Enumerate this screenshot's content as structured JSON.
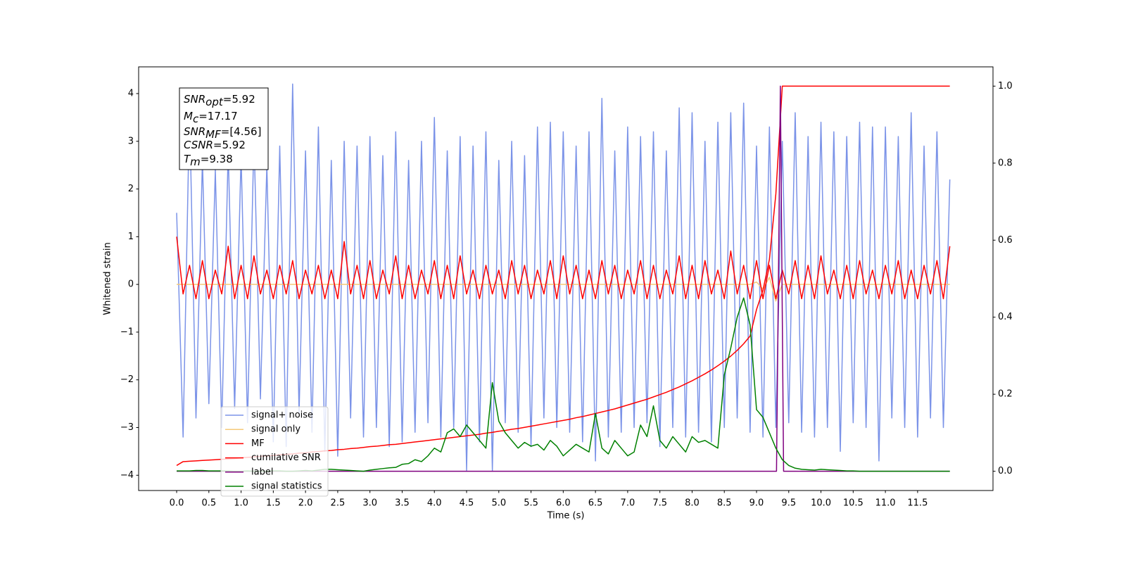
{
  "chart_data": {
    "type": "line",
    "xlabel": "Time (s)",
    "ylabel": "Whitened strain",
    "annotation": [
      {
        "main": "SNR",
        "sub": "opt",
        "rest": "=5.92"
      },
      {
        "main": "M",
        "sub": "c",
        "rest": "=17.17"
      },
      {
        "main": "SNR",
        "sub": "MF",
        "rest": "=[4.56]"
      },
      {
        "main": "CSNR",
        "rest": "=5.92"
      },
      {
        "main": "T",
        "sub": "m",
        "rest": "=9.38"
      }
    ],
    "legend": "lower left",
    "xlim": [
      -0.59,
      12.67
    ],
    "ylim": [
      -4.32,
      4.56
    ],
    "y2lim": [
      -0.05,
      1.05
    ],
    "xticks": [
      {
        "value": 0,
        "label": "0.0"
      },
      0.5,
      {
        "value": 1,
        "label": "1.0"
      },
      1.5,
      {
        "value": 2,
        "label": "2.0"
      },
      2.5,
      {
        "value": 3,
        "label": "3.0"
      },
      3.5,
      {
        "value": 4,
        "label": "4.0"
      },
      4.5,
      {
        "value": 5,
        "label": "5.0"
      },
      5.5,
      {
        "value": 6,
        "label": "6.0"
      },
      6.5,
      {
        "value": 7,
        "label": "7.0"
      },
      7.5,
      {
        "value": 8,
        "label": "8.0"
      },
      8.5,
      {
        "value": 9,
        "label": "9.0"
      },
      9.5,
      {
        "value": 10,
        "label": "10.0"
      },
      10.5,
      {
        "value": 11,
        "label": "11.0"
      },
      11.5
    ],
    "yticks": [
      {
        "value": -4,
        "label": "−4"
      },
      {
        "value": -3,
        "label": "−3"
      },
      {
        "value": -2,
        "label": "−2"
      },
      {
        "value": -1,
        "label": "−1"
      },
      0,
      1,
      2,
      3,
      4
    ],
    "y2ticks": [
      {
        "value": 0,
        "label": "0.0"
      },
      0.2,
      0.4,
      0.6,
      0.8,
      {
        "value": 1,
        "label": "1.0"
      }
    ],
    "x": [
      0,
      0.1,
      0.2,
      0.3,
      0.4,
      0.5,
      0.6,
      0.7,
      0.8,
      0.9,
      1,
      1.1,
      1.2,
      1.3,
      1.4,
      1.5,
      1.6,
      1.7,
      1.8,
      1.9,
      2,
      2.1,
      2.2,
      2.3,
      2.4,
      2.5,
      2.6,
      2.7,
      2.8,
      2.9,
      3,
      3.1,
      3.2,
      3.3,
      3.4,
      3.5,
      3.6,
      3.7,
      3.8,
      3.9,
      4,
      4.1,
      4.2,
      4.3,
      4.4,
      4.5,
      4.6,
      4.7,
      4.8,
      4.9,
      5,
      5.1,
      5.2,
      5.3,
      5.4,
      5.5,
      5.6,
      5.7,
      5.8,
      5.9,
      6,
      6.1,
      6.2,
      6.3,
      6.4,
      6.5,
      6.6,
      6.7,
      6.8,
      6.9,
      7,
      7.1,
      7.2,
      7.3,
      7.4,
      7.5,
      7.6,
      7.7,
      7.8,
      7.9,
      8,
      8.1,
      8.2,
      8.3,
      8.4,
      8.5,
      8.6,
      8.7,
      8.8,
      8.9,
      9,
      9.1,
      9.2,
      9.3,
      9.4,
      9.5,
      9.6,
      9.7,
      9.8,
      9.9,
      10,
      10.1,
      10.2,
      10.3,
      10.4,
      10.5,
      10.6,
      10.7,
      10.8,
      10.9,
      11,
      11.1,
      11.2,
      11.3,
      11.4,
      11.5,
      11.6,
      11.7,
      11.8,
      11.9,
      12
    ],
    "series": [
      {
        "name": "signal+ noise",
        "color": "#7b93e8",
        "values": [
          1.5,
          -3.2,
          3.7,
          -2.8,
          2.6,
          -2.5,
          2.4,
          -3.0,
          2.8,
          -2.6,
          2.7,
          -2.9,
          3.1,
          -2.4,
          2.5,
          -3.3,
          2.9,
          -3.4,
          4.2,
          -2.7,
          2.8,
          -3.1,
          3.3,
          -3.5,
          2.6,
          -3.6,
          3.0,
          -2.8,
          2.9,
          -3.2,
          3.1,
          -3.0,
          2.7,
          -3.4,
          3.2,
          -3.3,
          2.6,
          -3.1,
          3.0,
          -2.9,
          3.5,
          -3.2,
          2.8,
          -3.0,
          3.1,
          -3.9,
          2.9,
          -3.3,
          3.2,
          -3.9,
          2.6,
          -2.9,
          3.0,
          -3.1,
          2.7,
          -3.4,
          3.3,
          -2.8,
          3.4,
          -3.0,
          3.2,
          -3.1,
          2.9,
          -3.3,
          3.2,
          -3.7,
          3.9,
          -3.2,
          2.8,
          -3.1,
          3.3,
          -3.0,
          3.1,
          -2.9,
          3.2,
          -3.4,
          2.8,
          -3.0,
          3.7,
          -3.2,
          3.6,
          -3.1,
          3.0,
          -3.3,
          3.4,
          -3.0,
          3.6,
          -2.8,
          3.8,
          -3.1,
          2.9,
          -3.2,
          3.3,
          -3.0,
          3.0,
          -2.9,
          3.6,
          -3.1,
          3.1,
          -3.2,
          3.4,
          -3.0,
          3.2,
          -3.5,
          3.1,
          -2.9,
          3.4,
          -3.0,
          3.3,
          -3.7,
          3.3,
          -2.8,
          3.1,
          -3.0,
          3.6,
          -3.2,
          2.9,
          -2.8,
          3.2,
          -3.0,
          2.2
        ]
      },
      {
        "name": "signal only",
        "color": "#f5c97a",
        "values": [
          0,
          0,
          0,
          0,
          0,
          0,
          0,
          0,
          0,
          0,
          0,
          0,
          0,
          0,
          0,
          0,
          0,
          0,
          0,
          0,
          0,
          0,
          0,
          0,
          0,
          0,
          0,
          0,
          0,
          0,
          0,
          0,
          0,
          0,
          0,
          0,
          0,
          0,
          0,
          0,
          0,
          0,
          0,
          0,
          0,
          0,
          0,
          0,
          0,
          0,
          0,
          0,
          0,
          0,
          0,
          0,
          0,
          0,
          0,
          0,
          0,
          0,
          0,
          0,
          0,
          0,
          0,
          0,
          0,
          0,
          0,
          0,
          0,
          0,
          0,
          0,
          0,
          0,
          0,
          0,
          0,
          0,
          0,
          0,
          0,
          0,
          0,
          0,
          0,
          0,
          0.05,
          -0.1,
          0.15,
          -0.35,
          0,
          0,
          0,
          0,
          0,
          0,
          0,
          0,
          0,
          0,
          0,
          0,
          0,
          0,
          0,
          0,
          0,
          0,
          0,
          0,
          0,
          0,
          0,
          0,
          0,
          0,
          0
        ]
      },
      {
        "name": "MF",
        "color": "#ff0000",
        "values": [
          1.0,
          -0.2,
          0.4,
          -0.3,
          0.5,
          -0.3,
          0.3,
          -0.2,
          0.8,
          -0.3,
          0.4,
          -0.3,
          0.6,
          -0.2,
          0.3,
          -0.3,
          0.4,
          -0.2,
          0.5,
          -0.3,
          0.3,
          -0.2,
          0.4,
          -0.3,
          0.3,
          -0.3,
          0.9,
          -0.2,
          0.4,
          -0.3,
          0.5,
          -0.3,
          0.3,
          -0.2,
          0.6,
          -0.3,
          0.4,
          -0.3,
          0.3,
          -0.2,
          0.5,
          -0.3,
          0.4,
          -0.3,
          0.6,
          -0.2,
          0.3,
          -0.3,
          0.4,
          -0.2,
          0.3,
          -0.3,
          0.5,
          -0.2,
          0.4,
          -0.3,
          0.3,
          -0.2,
          0.5,
          -0.3,
          0.6,
          -0.2,
          0.4,
          -0.3,
          0.3,
          -0.3,
          0.5,
          -0.2,
          0.4,
          -0.3,
          0.3,
          -0.2,
          0.5,
          -0.3,
          0.4,
          -0.3,
          0.3,
          -0.2,
          0.6,
          -0.3,
          0.4,
          -0.3,
          0.5,
          -0.2,
          0.3,
          -0.3,
          0.7,
          -0.2,
          0.4,
          -0.3,
          0.5,
          -0.3,
          0.4,
          -0.3,
          0.3,
          -0.2,
          0.5,
          -0.3,
          0.4,
          -0.3,
          0.6,
          -0.2,
          0.3,
          -0.3,
          0.4,
          -0.3,
          0.5,
          -0.2,
          0.3,
          -0.3,
          0.4,
          -0.2,
          0.5,
          -0.3,
          0.3,
          -0.3,
          0.4,
          -0.2,
          0.5,
          -0.3,
          0.8
        ]
      },
      {
        "name": "cumilative SNR",
        "color": "#ff0000",
        "axis": "y2",
        "values": [
          0.015,
          0.025,
          0.026,
          0.027,
          0.028,
          0.029,
          0.03,
          0.031,
          0.032,
          0.033,
          0.035,
          0.036,
          0.037,
          0.039,
          0.04,
          0.041,
          0.043,
          0.044,
          0.045,
          0.047,
          0.048,
          0.05,
          0.051,
          0.053,
          0.054,
          0.056,
          0.057,
          0.059,
          0.06,
          0.062,
          0.064,
          0.065,
          0.067,
          0.069,
          0.07,
          0.072,
          0.074,
          0.076,
          0.078,
          0.08,
          0.082,
          0.084,
          0.086,
          0.088,
          0.09,
          0.092,
          0.094,
          0.096,
          0.099,
          0.101,
          0.104,
          0.106,
          0.109,
          0.111,
          0.114,
          0.117,
          0.12,
          0.123,
          0.126,
          0.129,
          0.132,
          0.135,
          0.139,
          0.142,
          0.146,
          0.15,
          0.154,
          0.158,
          0.162,
          0.167,
          0.172,
          0.177,
          0.182,
          0.187,
          0.193,
          0.199,
          0.205,
          0.212,
          0.219,
          0.227,
          0.235,
          0.244,
          0.253,
          0.263,
          0.274,
          0.286,
          0.299,
          0.314,
          0.331,
          0.351,
          0.42,
          0.47,
          0.55,
          0.72,
          1.0,
          1.0,
          1.0,
          1.0,
          1.0,
          1.0,
          1.0,
          1.0,
          1.0,
          1.0,
          1.0,
          1.0,
          1.0,
          1.0,
          1.0,
          1.0,
          1.0,
          1.0,
          1.0,
          1.0,
          1.0,
          1.0,
          1.0,
          1.0,
          1.0,
          1.0,
          1.0
        ]
      },
      {
        "name": "label",
        "color": "#800080",
        "axis": "y2",
        "x": [
          0,
          9.31,
          9.37,
          9.42,
          12
        ],
        "values": [
          0,
          0,
          1,
          0,
          0
        ]
      },
      {
        "name": "signal statistics",
        "color": "#008000",
        "axis": "y2",
        "values": [
          0.001,
          0.001,
          0.001,
          0.002,
          0.002,
          0.001,
          0.001,
          0.001,
          0.001,
          0.0,
          0.0,
          0.001,
          0.0,
          0.0,
          0.0,
          0.001,
          0.001,
          0.0,
          0.0,
          0.001,
          0.002,
          0.001,
          0.003,
          0.005,
          0.005,
          0.004,
          0.003,
          0.002,
          0.001,
          0.0,
          0.003,
          0.005,
          0.007,
          0.009,
          0.01,
          0.018,
          0.02,
          0.03,
          0.025,
          0.04,
          0.06,
          0.05,
          0.1,
          0.11,
          0.09,
          0.12,
          0.1,
          0.08,
          0.06,
          0.23,
          0.13,
          0.1,
          0.08,
          0.06,
          0.075,
          0.065,
          0.07,
          0.055,
          0.08,
          0.065,
          0.04,
          0.055,
          0.07,
          0.06,
          0.05,
          0.15,
          0.06,
          0.045,
          0.08,
          0.06,
          0.04,
          0.05,
          0.12,
          0.09,
          0.17,
          0.08,
          0.06,
          0.09,
          0.07,
          0.05,
          0.09,
          0.075,
          0.08,
          0.07,
          0.06,
          0.25,
          0.32,
          0.4,
          0.45,
          0.38,
          0.16,
          0.14,
          0.1,
          0.06,
          0.03,
          0.015,
          0.008,
          0.005,
          0.004,
          0.003,
          0.005,
          0.004,
          0.003,
          0.002,
          0.001,
          0.001,
          0.0,
          0.0,
          0.0,
          0.0,
          0.0,
          0.0,
          0.0,
          0.0,
          0.0,
          0.0,
          0.0,
          0.0,
          0.0,
          0.0,
          0.0
        ]
      }
    ]
  }
}
